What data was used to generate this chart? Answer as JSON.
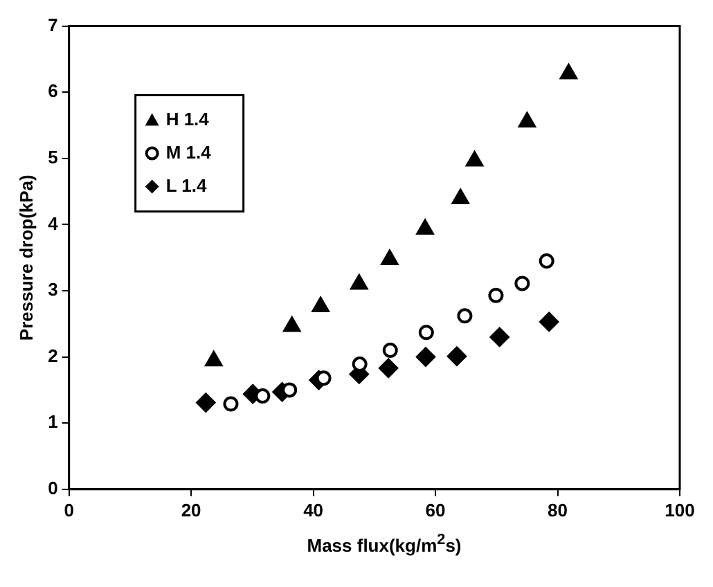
{
  "chart_data": {
    "type": "scatter",
    "xlabel": "Mass flux(kg/m$^{2}$s)",
    "ylabel": "Pressure drop(kPa)",
    "xlim": [
      0,
      100
    ],
    "xticks": [
      0,
      20,
      40,
      60,
      80,
      100
    ],
    "ylim": [
      0,
      7
    ],
    "yticks": [
      0,
      1,
      2,
      3,
      4,
      5,
      6,
      7
    ],
    "grid": false,
    "legend": "top left",
    "series": [
      {
        "name": "H 1.4",
        "color": "#000000",
        "marker": "triangle",
        "x": [
          23.7,
          36.5,
          41.2,
          47.5,
          52.5,
          58.3,
          64.1,
          66.4,
          75.0,
          81.8
        ],
        "values": [
          1.94,
          2.46,
          2.76,
          3.1,
          3.47,
          3.93,
          4.39,
          4.96,
          5.55,
          6.28
        ]
      },
      {
        "name": "M 1.4",
        "color": "#000000",
        "marker": "circle",
        "x": [
          26.5,
          31.7,
          36.1,
          41.7,
          47.6,
          52.6,
          58.5,
          64.8,
          69.9,
          74.2,
          78.2
        ],
        "values": [
          1.29,
          1.41,
          1.5,
          1.68,
          1.89,
          2.1,
          2.37,
          2.62,
          2.93,
          3.11,
          3.45
        ]
      },
      {
        "name": "L 1.4",
        "color": "#000000",
        "marker": "diamond",
        "x": [
          22.4,
          30.1,
          34.9,
          40.9,
          47.5,
          52.3,
          58.4,
          63.5,
          70.5,
          78.6
        ],
        "values": [
          1.31,
          1.44,
          1.47,
          1.65,
          1.74,
          1.83,
          2.0,
          2.01,
          2.3,
          2.53
        ]
      }
    ]
  }
}
